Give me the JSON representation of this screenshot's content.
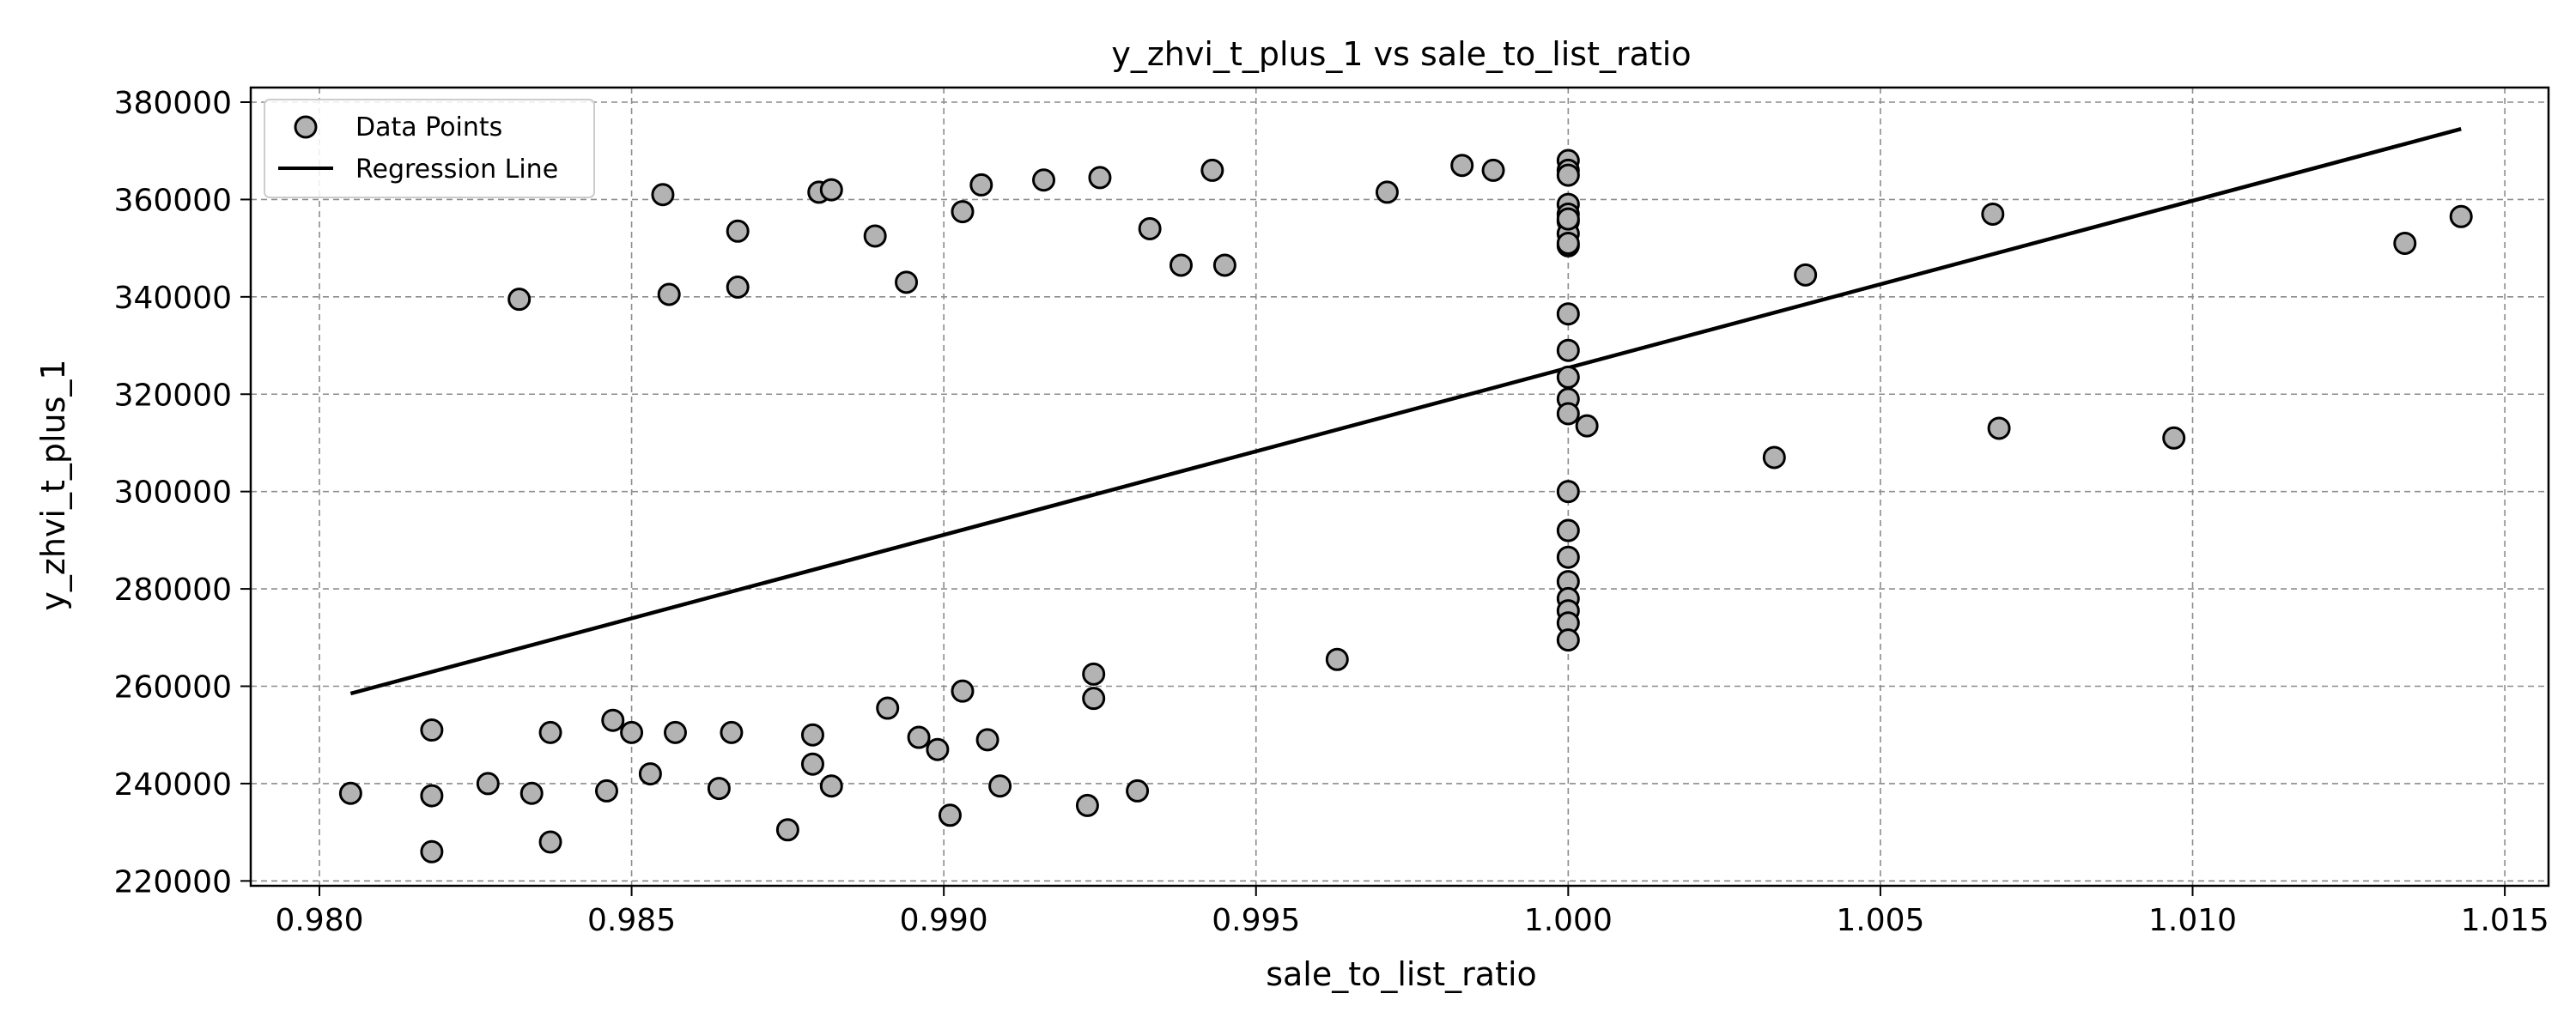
{
  "chart_data": {
    "type": "scatter",
    "title": "y_zhvi_t_plus_1 vs sale_to_list_ratio",
    "xlabel": "sale_to_list_ratio",
    "ylabel": "y_zhvi_t_plus_1",
    "xlim": [
      0.9789,
      1.0157
    ],
    "ylim": [
      219000,
      383000
    ],
    "xticks": [
      0.98,
      0.985,
      0.99,
      0.995,
      1.0,
      1.005,
      1.01,
      1.015
    ],
    "xtick_labels": [
      "0.980",
      "0.985",
      "0.990",
      "0.995",
      "1.000",
      "1.005",
      "1.010",
      "1.015"
    ],
    "yticks": [
      220000,
      240000,
      260000,
      280000,
      300000,
      320000,
      340000,
      360000,
      380000
    ],
    "ytick_labels": [
      "220000",
      "240000",
      "260000",
      "280000",
      "300000",
      "320000",
      "340000",
      "360000",
      "380000"
    ],
    "grid": true,
    "legend": {
      "position": "top-left",
      "entries": [
        {
          "label": "Data Points",
          "marker": "circle"
        },
        {
          "label": "Regression Line",
          "marker": "line"
        }
      ]
    },
    "colors": {
      "point_fill": "#b3b3b3",
      "point_edge": "#000000",
      "line": "#000000"
    },
    "series": [
      {
        "name": "Data Points",
        "type": "scatter",
        "x": [
          0.9805,
          0.9818,
          0.9818,
          0.9818,
          0.9827,
          0.9832,
          0.9834,
          0.9837,
          0.9837,
          0.9846,
          0.9847,
          0.985,
          0.9853,
          0.9855,
          0.9856,
          0.9857,
          0.9864,
          0.9866,
          0.9867,
          0.9867,
          0.9875,
          0.9879,
          0.9879,
          0.988,
          0.9882,
          0.9882,
          0.9889,
          0.9891,
          0.9894,
          0.9896,
          0.9899,
          0.9901,
          0.9903,
          0.9903,
          0.9906,
          0.9907,
          0.9909,
          0.9916,
          0.9923,
          0.9924,
          0.9924,
          0.9925,
          0.9931,
          0.9933,
          0.9938,
          0.9943,
          0.9945,
          0.9963,
          0.9971,
          0.9983,
          0.9988,
          1.0,
          1.0,
          1.0,
          1.0,
          1.0,
          1.0,
          1.0,
          1.0,
          1.0,
          1.0,
          1.0,
          1.0,
          1.0,
          1.0,
          1.0,
          1.0,
          1.0,
          1.0,
          1.0,
          1.0,
          1.0,
          1.0,
          1.0,
          1.0003,
          1.0033,
          1.0038,
          1.0068,
          1.0069,
          1.0097,
          1.0134,
          1.0143
        ],
        "y": [
          238000,
          251000,
          237500,
          226000,
          240000,
          339500,
          238000,
          228000,
          250500,
          238500,
          253000,
          250500,
          242000,
          361000,
          340500,
          250500,
          239000,
          250500,
          353500,
          342000,
          230500,
          244000,
          250000,
          361500,
          239500,
          362000,
          352500,
          255500,
          343000,
          249500,
          247000,
          233500,
          357500,
          259000,
          363000,
          249000,
          239500,
          364000,
          235500,
          262500,
          257500,
          364500,
          238500,
          354000,
          346500,
          366000,
          346500,
          265500,
          361500,
          367000,
          366000,
          368000,
          366000,
          365000,
          359000,
          357000,
          355500,
          353000,
          350500,
          336500,
          329000,
          323500,
          319000,
          316000,
          300000,
          292000,
          286500,
          281500,
          278000,
          275500,
          273000,
          269500,
          356000,
          351000,
          313500,
          307000,
          344500,
          357000,
          313000,
          311000,
          351000,
          356500
        ]
      },
      {
        "name": "Regression Line",
        "type": "line",
        "x": [
          0.9805,
          1.0143
        ],
        "y": [
          258500,
          374500
        ]
      }
    ]
  }
}
